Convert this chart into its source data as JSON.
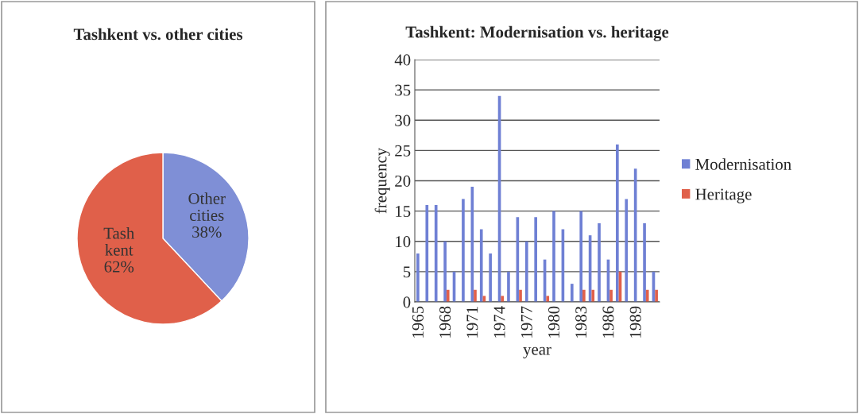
{
  "chart_data": [
    {
      "type": "pie",
      "title": "Tashkent vs. other cities",
      "categories": [
        "Other\ncities",
        "Tash\nkent"
      ],
      "values": [
        38,
        62
      ],
      "value_labels": [
        "38%",
        "62%"
      ],
      "colors": [
        "#7f8fd6",
        "#e0604a"
      ]
    },
    {
      "type": "bar",
      "title": "Tashkent: Modernisation vs. heritage",
      "xlabel": "year",
      "ylabel": "frequency",
      "categories": [
        "1965",
        null,
        null,
        "1968",
        null,
        null,
        "1971",
        null,
        null,
        "1974",
        null,
        null,
        "1977",
        null,
        null,
        "1980",
        null,
        null,
        "1983",
        null,
        null,
        "1986",
        null,
        null,
        "1989",
        null,
        null
      ],
      "series": [
        {
          "name": "Modernisation",
          "color": "#6f80d4",
          "values": [
            8,
            16,
            16,
            10,
            5,
            17,
            19,
            12,
            8,
            34,
            5,
            14,
            10,
            14,
            7,
            15,
            12,
            3,
            15,
            11,
            13,
            7,
            26,
            17,
            22,
            13,
            5
          ]
        },
        {
          "name": "Heritage",
          "color": "#e0604a",
          "values": [
            null,
            null,
            null,
            2,
            null,
            null,
            2,
            1,
            null,
            1,
            null,
            2,
            null,
            null,
            1,
            null,
            null,
            null,
            2,
            2,
            null,
            2,
            5,
            null,
            null,
            2,
            2
          ]
        }
      ],
      "ylim": [
        0,
        40
      ],
      "yticks": [
        0,
        5,
        10,
        15,
        20,
        25,
        30,
        35,
        40
      ],
      "grid": "y",
      "legend": "right"
    }
  ]
}
